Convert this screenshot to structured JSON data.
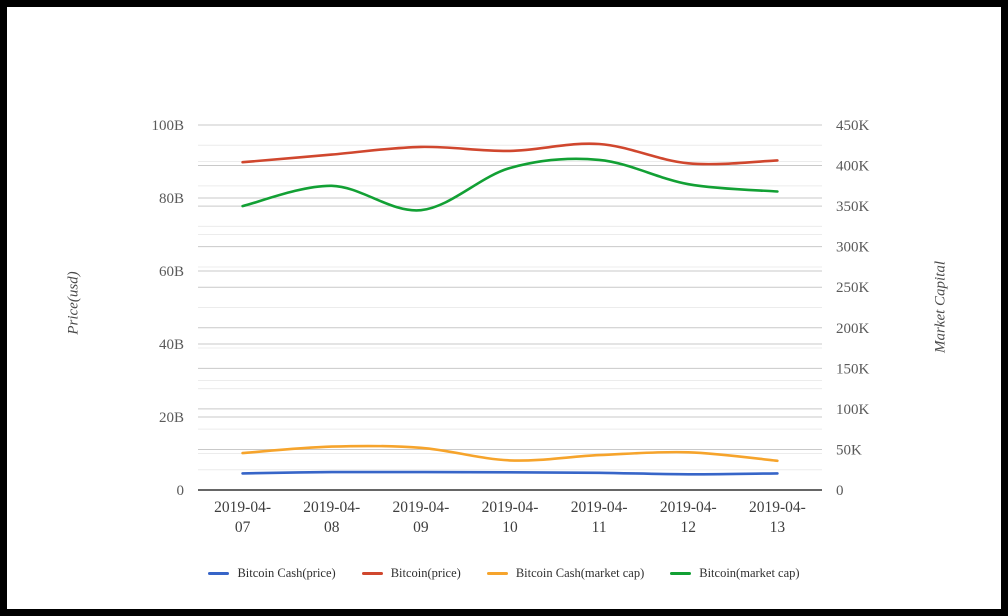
{
  "chart_data": {
    "type": "line",
    "x": [
      "2019-04-07",
      "2019-04-08",
      "2019-04-09",
      "2019-04-10",
      "2019-04-11",
      "2019-04-12",
      "2019-04-13"
    ],
    "series": [
      {
        "name": "Bitcoin Cash(price)",
        "axis": "left",
        "color": "#3765c8",
        "values": [
          4.55,
          4.9,
          4.9,
          4.85,
          4.7,
          4.3,
          4.55
        ]
      },
      {
        "name": "Bitcoin(price)",
        "axis": "left",
        "color": "#d0472e",
        "values": [
          89.8,
          91.9,
          94.0,
          92.9,
          94.8,
          89.5,
          90.3
        ]
      },
      {
        "name": "Bitcoin Cash(market cap)",
        "axis": "right",
        "color": "#f6a42c",
        "values": [
          45.5,
          53.5,
          52,
          36.5,
          43,
          46.5,
          36
        ]
      },
      {
        "name": "Bitcoin(market cap)",
        "axis": "right",
        "color": "#12a034",
        "values": [
          350,
          375,
          345,
          397,
          407,
          377,
          368
        ]
      }
    ],
    "left_axis": {
      "label": "Price(usd)",
      "max": 100,
      "tick_step": 20,
      "minor_step": 10,
      "tick_labels": [
        "0",
        "20B",
        "40B",
        "60B",
        "80B",
        "100B"
      ]
    },
    "right_axis": {
      "label": "Market Capital",
      "max": 450,
      "tick_step": 50,
      "minor_step": 25,
      "tick_labels": [
        "0",
        "50K",
        "100K",
        "150K",
        "200K",
        "250K",
        "300K",
        "350K",
        "400K",
        "450K"
      ]
    },
    "grid": {
      "major_color": "#c9c9c9",
      "minor_color": "#ececec",
      "axis_line_color": "#333333"
    },
    "text_colors": {
      "y_tick": "#5a5a5a",
      "x_tick": "#3e3e3e"
    },
    "legend_position": "bottom",
    "grid_on": true
  }
}
